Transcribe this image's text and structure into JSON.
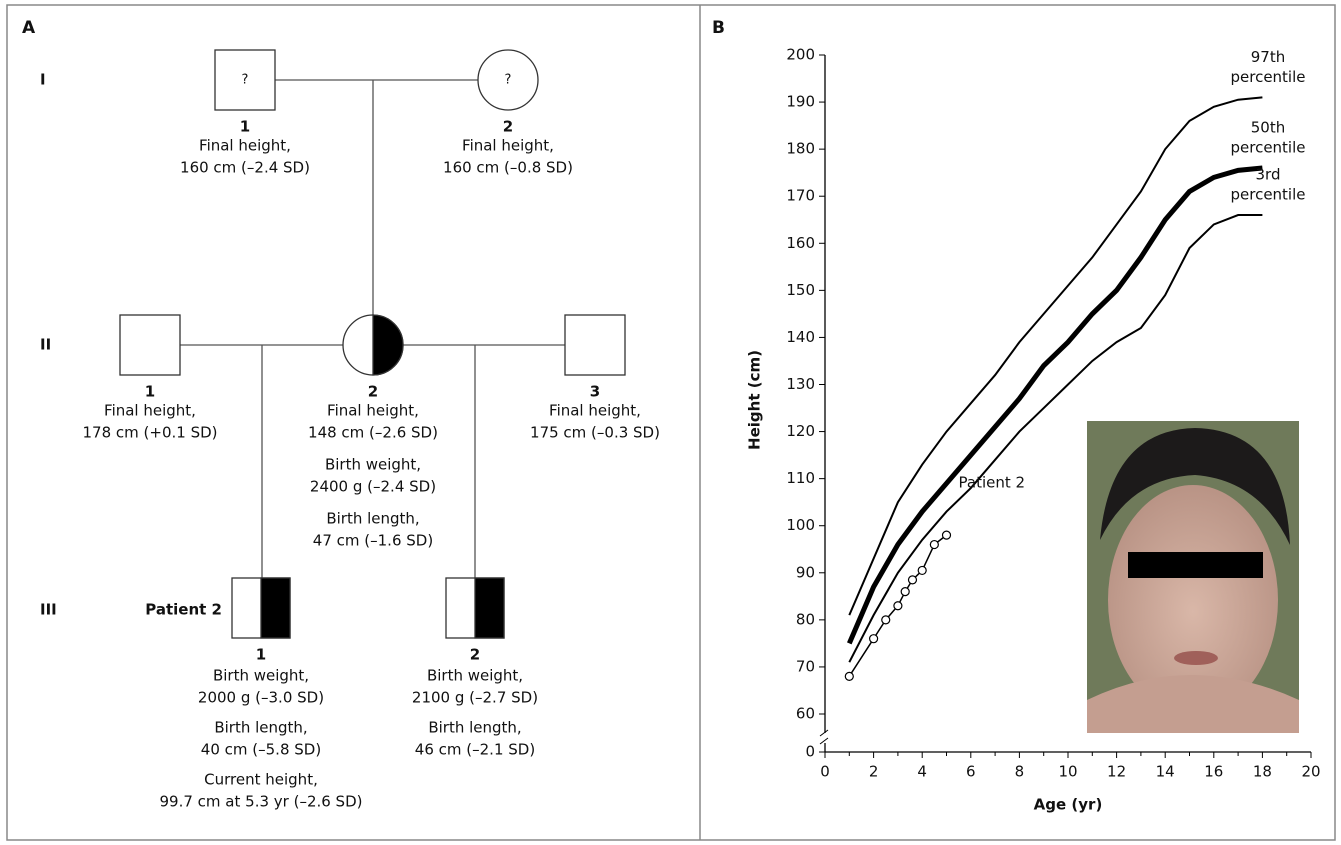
{
  "panels": [
    "A",
    "B"
  ],
  "pedigree": {
    "generation_labels": [
      "I",
      "II",
      "III"
    ],
    "proband_label": "Patient 2",
    "individuals": [
      {
        "number": "1",
        "symbol": "?",
        "lines": [
          "Final height,",
          "160 cm (–2.4 SD)"
        ]
      },
      {
        "number": "2",
        "symbol": "?",
        "lines": [
          "Final height,",
          "160 cm (–0.8 SD)"
        ]
      },
      {
        "number": "1",
        "lines": [
          "Final height,",
          "178 cm (+0.1 SD)"
        ]
      },
      {
        "number": "2",
        "lines": [
          "Final height,",
          "148 cm (–2.6 SD)",
          "Birth weight,",
          "2400 g (–2.4 SD)",
          "Birth length,",
          "47 cm (–1.6 SD)"
        ]
      },
      {
        "number": "3",
        "lines": [
          "Final height,",
          "175 cm (–0.3 SD)"
        ]
      },
      {
        "number": "1",
        "lines": [
          "Birth weight,",
          "2000 g (–3.0 SD)",
          "Birth length,",
          "40 cm (–5.8 SD)",
          "Current height,",
          "99.7 cm at 5.3 yr (–2.6 SD)"
        ]
      },
      {
        "number": "2",
        "lines": [
          "Birth weight,",
          "2100 g (–2.7 SD)",
          "Birth length,",
          "46 cm (–2.1 SD)"
        ]
      }
    ]
  },
  "chart_data": {
    "type": "line",
    "xlabel": "Age (yr)",
    "ylabel": "Height (cm)",
    "xlim": [
      0,
      20
    ],
    "xticks": [
      0,
      2,
      4,
      6,
      8,
      10,
      12,
      14,
      16,
      18,
      20
    ],
    "ylim": [
      60,
      200
    ],
    "yticks": [
      0,
      60,
      70,
      80,
      90,
      100,
      110,
      120,
      130,
      140,
      150,
      160,
      170,
      180,
      190,
      200
    ],
    "axis_break": true,
    "series": [
      {
        "color": "#000000",
        "width": 2,
        "label": [
          "97th",
          "percentile"
        ],
        "x": [
          1,
          2,
          3,
          4,
          5,
          6,
          7,
          8,
          9,
          10,
          11,
          12,
          13,
          14,
          15,
          16,
          17,
          18
        ],
        "values": [
          81,
          93,
          105,
          113,
          120,
          126,
          132,
          139,
          145,
          151,
          157,
          164,
          171,
          180,
          186,
          189,
          190.5,
          191
        ]
      },
      {
        "color": "#000000",
        "width": 5,
        "label": [
          "50th",
          "percentile"
        ],
        "x": [
          1,
          2,
          3,
          4,
          5,
          6,
          7,
          8,
          9,
          10,
          11,
          12,
          13,
          14,
          15,
          16,
          17,
          18
        ],
        "values": [
          75,
          87,
          96,
          103,
          109,
          115,
          121,
          127,
          134,
          139,
          145,
          150,
          157,
          165,
          171,
          174,
          175.5,
          176
        ]
      },
      {
        "color": "#000000",
        "width": 2,
        "label": [
          "3rd",
          "percentile"
        ],
        "x": [
          1,
          2,
          3,
          4,
          5,
          6,
          7,
          8,
          9,
          10,
          11,
          12,
          13,
          14,
          15,
          16,
          17,
          18
        ],
        "values": [
          71,
          81,
          90,
          97,
          103,
          108,
          114,
          120,
          125,
          130,
          135,
          139,
          142,
          149,
          159,
          164,
          166,
          166
        ]
      },
      {
        "color": "#000000",
        "width": 1.5,
        "markers": true,
        "label": [
          "Patient 2"
        ],
        "x": [
          1,
          2,
          2.5,
          3,
          3.3,
          3.6,
          4,
          4.5,
          5
        ],
        "values": [
          68,
          76,
          80,
          83,
          86,
          88.5,
          90.5,
          96,
          98
        ]
      }
    ]
  }
}
